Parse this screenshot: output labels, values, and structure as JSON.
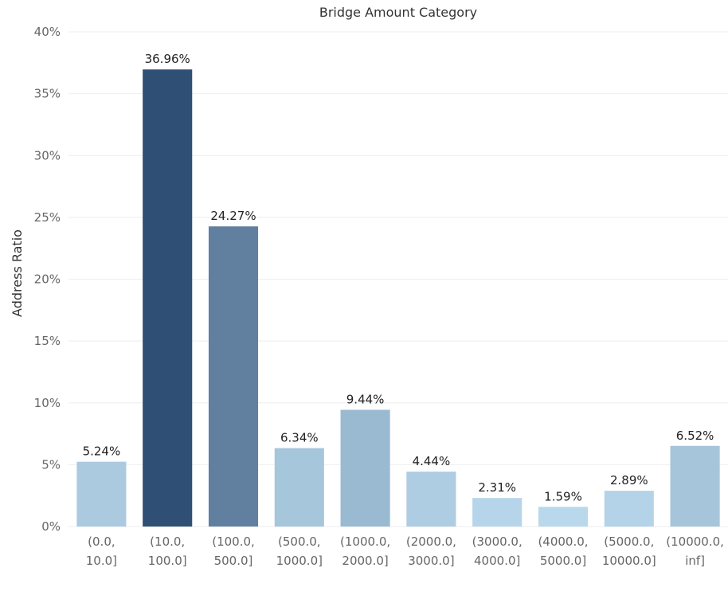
{
  "chart_data": {
    "type": "bar",
    "title": "Bridge Amount Category",
    "xlabel": "",
    "ylabel": "Address Ratio",
    "ylim": [
      0,
      40
    ],
    "yticks": [
      "0%",
      "5%",
      "10%",
      "15%",
      "20%",
      "25%",
      "30%",
      "35%",
      "40%"
    ],
    "ytick_values": [
      0,
      5,
      10,
      15,
      20,
      25,
      30,
      35,
      40
    ],
    "grid": true,
    "legend": "none",
    "categories": [
      [
        "(0.0,",
        "10.0]"
      ],
      [
        "(10.0,",
        "100.0]"
      ],
      [
        "(100.0,",
        "500.0]"
      ],
      [
        "(500.0,",
        "1000.0]"
      ],
      [
        "(1000.0,",
        "2000.0]"
      ],
      [
        "(2000.0,",
        "3000.0]"
      ],
      [
        "(3000.0,",
        "4000.0]"
      ],
      [
        "(4000.0,",
        "5000.0]"
      ],
      [
        "(5000.0,",
        "10000.0]"
      ],
      [
        "(10000.0,",
        "inf]"
      ]
    ],
    "values": [
      5.24,
      36.96,
      24.27,
      6.34,
      9.44,
      4.44,
      2.31,
      1.59,
      2.89,
      6.52
    ],
    "value_labels": [
      "5.24%",
      "36.96%",
      "24.27%",
      "6.34%",
      "9.44%",
      "4.44%",
      "2.31%",
      "1.59%",
      "2.89%",
      "6.52%"
    ],
    "colors": {
      "low": "#b9d8ec",
      "high": "#2f4f75",
      "grid": "#eeeeee"
    }
  }
}
